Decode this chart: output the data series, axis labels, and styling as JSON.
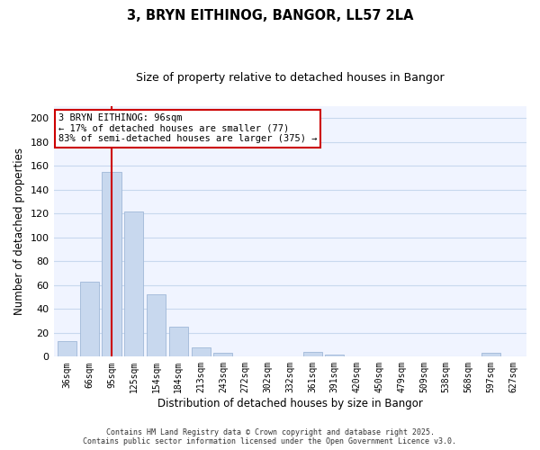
{
  "title": "3, BRYN EITHINOG, BANGOR, LL57 2LA",
  "subtitle": "Size of property relative to detached houses in Bangor",
  "xlabel": "Distribution of detached houses by size in Bangor",
  "ylabel": "Number of detached properties",
  "bar_color": "#c8d8ee",
  "bar_edge_color": "#a0b8d8",
  "grid_color": "#c8d8ee",
  "vline_color": "#cc0000",
  "vline_x_index": 2,
  "annotation_line1": "3 BRYN EITHINOG: 96sqm",
  "annotation_line2": "← 17% of detached houses are smaller (77)",
  "annotation_line3": "83% of semi-detached houses are larger (375) →",
  "annotation_box_facecolor": "#ffffff",
  "annotation_box_edgecolor": "#cc0000",
  "categories": [
    "36sqm",
    "66sqm",
    "95sqm",
    "125sqm",
    "154sqm",
    "184sqm",
    "213sqm",
    "243sqm",
    "272sqm",
    "302sqm",
    "332sqm",
    "361sqm",
    "391sqm",
    "420sqm",
    "450sqm",
    "479sqm",
    "509sqm",
    "538sqm",
    "568sqm",
    "597sqm",
    "627sqm"
  ],
  "values": [
    13,
    63,
    155,
    122,
    52,
    25,
    8,
    3,
    0,
    0,
    0,
    4,
    2,
    0,
    0,
    0,
    0,
    0,
    0,
    3,
    0
  ],
  "ylim": [
    0,
    210
  ],
  "yticks": [
    0,
    20,
    40,
    60,
    80,
    100,
    120,
    140,
    160,
    180,
    200
  ],
  "footer_line1": "Contains HM Land Registry data © Crown copyright and database right 2025.",
  "footer_line2": "Contains public sector information licensed under the Open Government Licence v3.0.",
  "bg_color": "#ffffff",
  "plot_bg_color": "#f0f4ff"
}
